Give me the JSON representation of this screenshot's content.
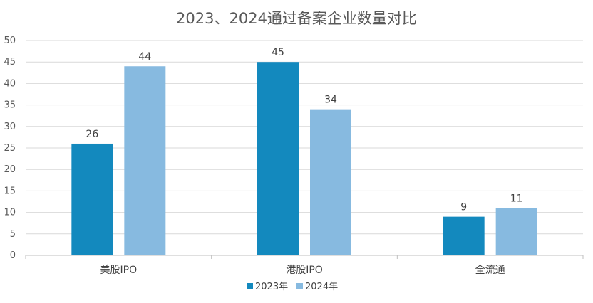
{
  "chart_data": {
    "type": "bar",
    "title": "2023、2024通过备案企业数量对比",
    "categories": [
      "美股IPO",
      "港股IPO",
      "全流通"
    ],
    "series": [
      {
        "name": "2023年",
        "values": [
          26,
          45,
          9
        ],
        "color": "#1389BE"
      },
      {
        "name": "2024年",
        "values": [
          44,
          34,
          11
        ],
        "color": "#87BAE0"
      }
    ],
    "ylim": [
      0,
      50
    ],
    "yticks": [
      0,
      5,
      10,
      15,
      20,
      25,
      30,
      35,
      40,
      45,
      50
    ],
    "grid": true,
    "legend": "bottom",
    "data_labels": true
  }
}
